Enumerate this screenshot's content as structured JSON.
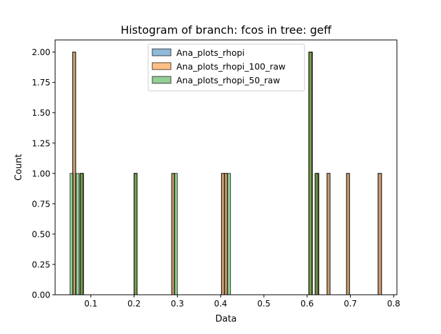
{
  "chart_data": {
    "type": "bar",
    "title": "Histogram of branch: fcos in tree: geff",
    "xlabel": "Data",
    "ylabel": "Count",
    "xlim": [
      0.0175,
      0.8075
    ],
    "ylim": [
      0,
      2.1
    ],
    "xticks": [
      0.1,
      0.2,
      0.3,
      0.4,
      0.5,
      0.6,
      0.7,
      0.8
    ],
    "xtick_labels": [
      "0.1",
      "0.2",
      "0.3",
      "0.4",
      "0.5",
      "0.6",
      "0.7",
      "0.8"
    ],
    "yticks": [
      0,
      0.25,
      0.5,
      0.75,
      1.0,
      1.25,
      1.5,
      1.75,
      2.0
    ],
    "ytick_labels": [
      "0.00",
      "0.25",
      "0.50",
      "0.75",
      "1.00",
      "1.25",
      "1.50",
      "1.75",
      "2.00"
    ],
    "grid": false,
    "legend_position": "top-center",
    "series": [
      {
        "name": "Ana_plots_rhopi",
        "color": "#1f77b4",
        "bins": [
          {
            "x0": 0.058,
            "x1": 0.065,
            "value": 2
          },
          {
            "x0": 0.076,
            "x1": 0.083,
            "value": 1
          },
          {
            "x0": 0.2,
            "x1": 0.207,
            "value": 1
          },
          {
            "x0": 0.287,
            "x1": 0.294,
            "value": 1
          },
          {
            "x0": 0.402,
            "x1": 0.409,
            "value": 1
          },
          {
            "x0": 0.409,
            "x1": 0.416,
            "value": 1
          },
          {
            "x0": 0.604,
            "x1": 0.612,
            "value": 2
          },
          {
            "x0": 0.62,
            "x1": 0.627,
            "value": 1
          },
          {
            "x0": 0.646,
            "x1": 0.653,
            "value": 1
          },
          {
            "x0": 0.691,
            "x1": 0.698,
            "value": 1
          },
          {
            "x0": 0.764,
            "x1": 0.772,
            "value": 1
          }
        ]
      },
      {
        "name": "Ana_plots_rhopi_100_raw",
        "color": "#ff7f0e",
        "bins": [
          {
            "x0": 0.058,
            "x1": 0.065,
            "value": 2
          },
          {
            "x0": 0.076,
            "x1": 0.083,
            "value": 1
          },
          {
            "x0": 0.2,
            "x1": 0.207,
            "value": 1
          },
          {
            "x0": 0.287,
            "x1": 0.294,
            "value": 1
          },
          {
            "x0": 0.402,
            "x1": 0.409,
            "value": 1
          },
          {
            "x0": 0.409,
            "x1": 0.416,
            "value": 1
          },
          {
            "x0": 0.604,
            "x1": 0.612,
            "value": 2
          },
          {
            "x0": 0.62,
            "x1": 0.627,
            "value": 1
          },
          {
            "x0": 0.646,
            "x1": 0.653,
            "value": 1
          },
          {
            "x0": 0.691,
            "x1": 0.698,
            "value": 1
          },
          {
            "x0": 0.764,
            "x1": 0.772,
            "value": 1
          }
        ]
      },
      {
        "name": "Ana_plots_rhopi_50_raw",
        "color": "#2ca02c",
        "bins": [
          {
            "x0": 0.052,
            "x1": 0.059,
            "value": 1
          },
          {
            "x0": 0.066,
            "x1": 0.073,
            "value": 1
          },
          {
            "x0": 0.075,
            "x1": 0.082,
            "value": 1
          },
          {
            "x0": 0.2,
            "x1": 0.207,
            "value": 1
          },
          {
            "x0": 0.293,
            "x1": 0.3,
            "value": 1
          },
          {
            "x0": 0.416,
            "x1": 0.423,
            "value": 1
          },
          {
            "x0": 0.604,
            "x1": 0.611,
            "value": 2
          },
          {
            "x0": 0.618,
            "x1": 0.625,
            "value": 1
          }
        ]
      }
    ]
  }
}
